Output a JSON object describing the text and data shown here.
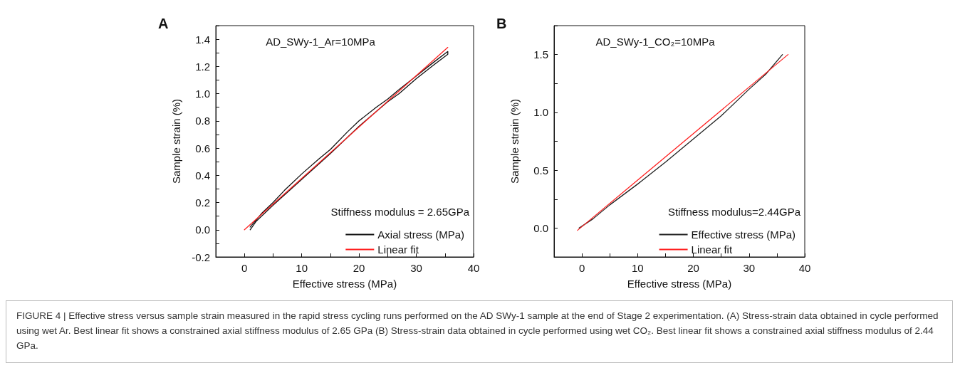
{
  "chart_data": [
    {
      "type": "line",
      "title": "A",
      "subtitle": "AD_SWy-1_Ar=10MPa",
      "xlabel": "Effective stress (MPa)",
      "ylabel": "Sample strain (%)",
      "annotations": [
        "Stiffness modulus = 2.65GPa"
      ],
      "xlim": [
        -5,
        40
      ],
      "xticks": [
        {
          "value": -5,
          "label": null
        },
        0,
        {
          "value": 5,
          "label": null
        },
        10,
        {
          "value": 15,
          "label": null
        },
        20,
        {
          "value": 25,
          "label": null
        },
        30,
        {
          "value": 35,
          "label": null
        },
        40
      ],
      "ylim": [
        -0.2,
        1.5
      ],
      "yticks": [
        -0.2,
        {
          "value": -0.1,
          "label": null
        },
        {
          "value": 0,
          "label": "0.0"
        },
        {
          "value": 0.1,
          "label": null
        },
        0.2,
        {
          "value": 0.3,
          "label": null
        },
        0.4,
        {
          "value": 0.5,
          "label": null
        },
        0.6,
        {
          "value": 0.7,
          "label": null
        },
        0.8,
        {
          "value": 0.9,
          "label": null
        },
        {
          "value": 1,
          "label": "1.0"
        },
        {
          "value": 1.1,
          "label": null
        },
        1.2,
        {
          "value": 1.3,
          "label": null
        },
        1.4,
        {
          "value": 1.5,
          "label": null
        }
      ],
      "grid": false,
      "legend": "bottom right",
      "marker": "none",
      "line_style": "solid",
      "series": [
        {
          "name": "Axial stress (MPa)",
          "color": "#111111",
          "x": [
            1,
            3,
            5,
            7,
            10,
            13,
            15,
            18,
            20,
            23,
            25,
            27,
            30,
            33,
            35.5,
            35.5,
            33,
            30,
            27,
            25,
            20,
            15,
            10,
            5,
            2,
            1
          ],
          "values": [
            0.02,
            0.12,
            0.2,
            0.29,
            0.41,
            0.52,
            0.59,
            0.72,
            0.8,
            0.9,
            0.96,
            1.03,
            1.13,
            1.23,
            1.31,
            1.29,
            1.21,
            1.11,
            1.0,
            0.94,
            0.76,
            0.56,
            0.37,
            0.18,
            0.06,
            0.0
          ]
        },
        {
          "name": "Linear fit",
          "color": "#ff2020",
          "x": [
            0,
            35.5
          ],
          "values": [
            0,
            1.34
          ]
        }
      ]
    },
    {
      "type": "line",
      "title": "B",
      "subtitle": "AD_SWy-1_CO₂=10MPa",
      "xlabel": "Effective stress (MPa)",
      "ylabel": "Sample strain (%)",
      "annotations": [
        "Stiffness modulus=2.44GPa"
      ],
      "xlim": [
        -5,
        40
      ],
      "xticks": [
        {
          "value": -5,
          "label": null
        },
        0,
        {
          "value": 5,
          "label": null
        },
        10,
        {
          "value": 15,
          "label": null
        },
        20,
        {
          "value": 25,
          "label": null
        },
        30,
        {
          "value": 35,
          "label": null
        },
        40
      ],
      "ylim": [
        -0.25,
        1.75
      ],
      "yticks": [
        {
          "value": -0.25,
          "label": null
        },
        {
          "value": 0,
          "label": "0.0"
        },
        {
          "value": 0.25,
          "label": null
        },
        0.5,
        {
          "value": 0.75,
          "label": null
        },
        {
          "value": 1,
          "label": "1.0"
        },
        {
          "value": 1.25,
          "label": null
        },
        1.5,
        {
          "value": 1.75,
          "label": null
        }
      ],
      "grid": false,
      "legend": "bottom right",
      "marker": "none",
      "line_style": "solid",
      "series": [
        {
          "name": "Effective stress (MPa)",
          "color": "#222222",
          "x": [
            -0.5,
            2,
            5,
            10,
            15,
            20,
            25,
            30,
            33,
            36
          ],
          "values": [
            0,
            0.08,
            0.2,
            0.38,
            0.57,
            0.77,
            0.97,
            1.2,
            1.33,
            1.5
          ]
        },
        {
          "name": "Linear fit",
          "color": "#ff2020",
          "x": [
            -0.8,
            37
          ],
          "values": [
            -0.02,
            1.5
          ]
        }
      ]
    },
    {
      "type": "other",
      "annotations": [
        "FIGURE 4 | Effective stress versus sample strain measured in the rapid stress cycling runs performed on the AD SWy-1 sample at the end of Stage 2 experimentation. (A) Stress-strain data obtained in cycle performed using wet Ar. Best linear fit shows a constrained axial stiffness modulus of 2.65 GPa (B) Stress-strain data obtained in cycle performed using wet CO₂. Best linear fit shows a constrained axial stiffness modulus of 2.44 GPa."
      ]
    }
  ]
}
